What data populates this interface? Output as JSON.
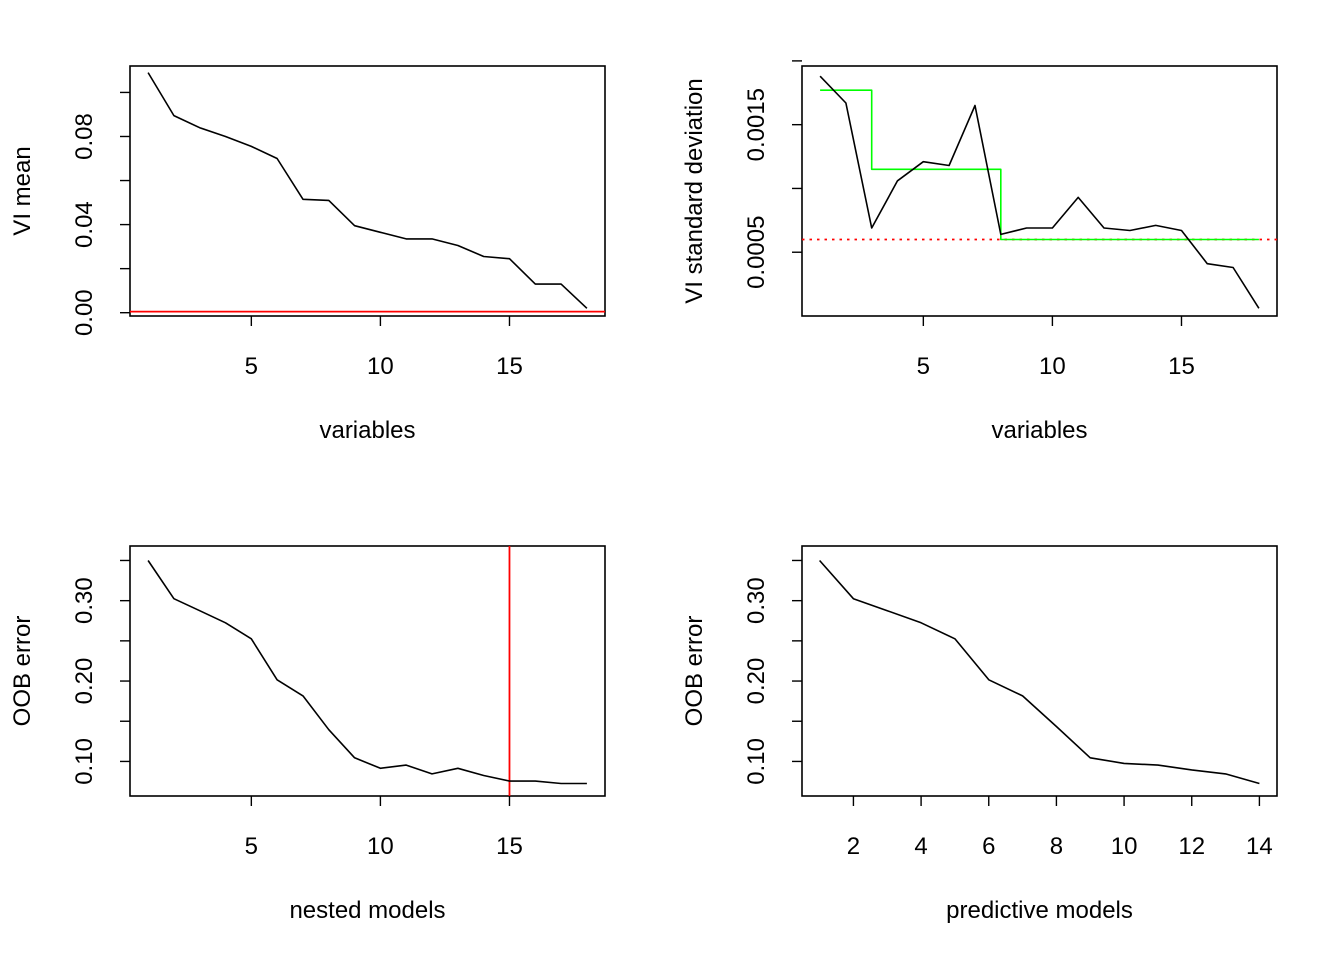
{
  "colors": {
    "axis": "#000000",
    "series": "#000000",
    "threshold": "#ff0000",
    "step": "#00ff00",
    "background": "#ffffff"
  },
  "chart_data": [
    {
      "type": "line",
      "xlabel": "variables",
      "ylabel": "VI mean",
      "xlim": [
        0.3,
        18.7
      ],
      "ylim": [
        -0.0015,
        0.112
      ],
      "xticks": [
        5,
        10,
        15
      ],
      "xtick_labels": [
        "5",
        "10",
        "15"
      ],
      "yticks": [
        0.0,
        0.02,
        0.04,
        0.06,
        0.08,
        0.1
      ],
      "ytick_labels": [
        "0.00",
        "",
        "0.04",
        "",
        "0.08",
        ""
      ],
      "x": [
        1,
        2,
        3,
        4,
        5,
        6,
        7,
        8,
        9,
        10,
        11,
        12,
        13,
        14,
        15,
        16,
        17,
        18
      ],
      "y": [
        0.109,
        0.0895,
        0.084,
        0.08,
        0.0755,
        0.07,
        0.0515,
        0.051,
        0.0395,
        0.0365,
        0.0335,
        0.0335,
        0.0305,
        0.0255,
        0.0245,
        0.013,
        0.013,
        0.002
      ],
      "hlines": [
        {
          "y": 0.0005,
          "color": "#ff0000",
          "style": "solid"
        }
      ]
    },
    {
      "type": "line",
      "xlabel": "variables",
      "ylabel": "VI standard deviation",
      "xlim": [
        0.3,
        18.7
      ],
      "ylim": [
        0.0,
        0.00196
      ],
      "xticks": [
        5,
        10,
        15
      ],
      "xtick_labels": [
        "5",
        "10",
        "15"
      ],
      "yticks": [
        0.0005,
        0.001,
        0.0015,
        0.002
      ],
      "ytick_labels": [
        "0.0005",
        "",
        "0.0015",
        ""
      ],
      "x": [
        1,
        2,
        3,
        4,
        5,
        6,
        7,
        8,
        9,
        10,
        11,
        12,
        13,
        14,
        15,
        16,
        17,
        18
      ],
      "y": [
        0.00188,
        0.00167,
        0.00069,
        0.00106,
        0.00121,
        0.00118,
        0.00165,
        0.00064,
        0.00069,
        0.00069,
        0.00093,
        0.00069,
        0.00067,
        0.00071,
        0.00067,
        0.00041,
        0.00038,
        6e-05
      ],
      "step_line": {
        "color": "#00ff00",
        "x": [
          1,
          3,
          3,
          8,
          8,
          18
        ],
        "y": [
          0.00177,
          0.00177,
          0.00115,
          0.00115,
          0.0006,
          0.0006
        ]
      },
      "hlines": [
        {
          "y": 0.0006,
          "color": "#ff0000",
          "style": "dotted"
        }
      ]
    },
    {
      "type": "line",
      "xlabel": "nested models",
      "ylabel": "OOB error",
      "xlim": [
        0.3,
        18.7
      ],
      "ylim": [
        0.057,
        0.368
      ],
      "xticks": [
        5,
        10,
        15
      ],
      "xtick_labels": [
        "5",
        "10",
        "15"
      ],
      "yticks": [
        0.1,
        0.15,
        0.2,
        0.25,
        0.3,
        0.35
      ],
      "ytick_labels": [
        "0.10",
        "",
        "0.20",
        "",
        "0.30",
        ""
      ],
      "x": [
        1,
        2,
        3,
        4,
        5,
        6,
        7,
        8,
        9,
        10,
        11,
        12,
        13,
        14,
        15,
        16,
        17,
        18
      ],
      "y": [
        0.35,
        0.3025,
        0.2875,
        0.2725,
        0.2525,
        0.2015,
        0.1815,
        0.1395,
        0.1045,
        0.0915,
        0.0955,
        0.0845,
        0.0915,
        0.0825,
        0.0755,
        0.0755,
        0.0725,
        0.0725
      ],
      "vlines": [
        {
          "x": 15,
          "color": "#ff0000",
          "style": "solid"
        }
      ]
    },
    {
      "type": "line",
      "xlabel": "predictive models",
      "ylabel": "OOB error",
      "xlim": [
        0.48,
        14.52
      ],
      "ylim": [
        0.057,
        0.368
      ],
      "xticks": [
        2,
        4,
        6,
        8,
        10,
        12,
        14
      ],
      "xtick_labels": [
        "2",
        "4",
        "6",
        "8",
        "10",
        "12",
        "14"
      ],
      "yticks": [
        0.1,
        0.15,
        0.2,
        0.25,
        0.3,
        0.35
      ],
      "ytick_labels": [
        "0.10",
        "",
        "0.20",
        "",
        "0.30",
        ""
      ],
      "x": [
        1,
        2,
        3,
        4,
        5,
        6,
        7,
        8,
        9,
        10,
        11,
        12,
        13,
        14
      ],
      "y": [
        0.35,
        0.3025,
        0.2875,
        0.2725,
        0.2525,
        0.2015,
        0.1815,
        0.1435,
        0.1045,
        0.0975,
        0.0955,
        0.0895,
        0.0845,
        0.0725
      ]
    }
  ]
}
